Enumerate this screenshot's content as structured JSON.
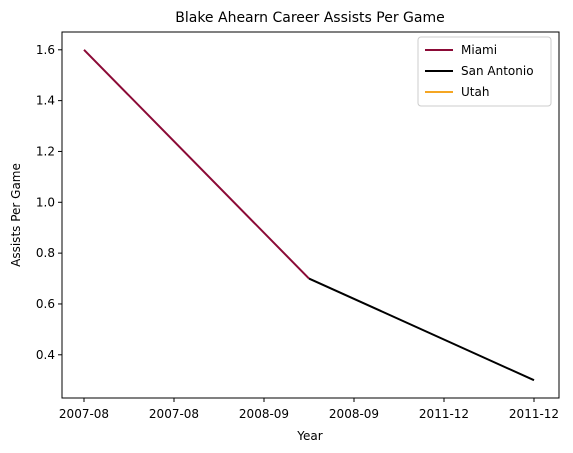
{
  "chart_data": {
    "type": "line",
    "title": "Blake Ahearn Career Assists Per Game",
    "xlabel": "Year",
    "ylabel": "Assists Per Game",
    "x_ticks": [
      "2007-08",
      "2007-08",
      "2008-09",
      "2008-09",
      "2011-12",
      "2011-12"
    ],
    "ylim": [
      0.23,
      1.67
    ],
    "y_ticks": [
      0.4,
      0.6,
      0.8,
      1.0,
      1.2,
      1.4,
      1.6
    ],
    "y_tick_labels": [
      "0.4",
      "0.6",
      "0.8",
      "1.0",
      "1.2",
      "1.4",
      "1.6"
    ],
    "grid": false,
    "legend_position": "top-right",
    "series": [
      {
        "name": "Miami",
        "color": "#8b0a36",
        "points": [
          [
            0,
            1.6
          ],
          [
            2.5,
            0.7
          ]
        ]
      },
      {
        "name": "San Antonio",
        "color": "#000000",
        "points": [
          [
            2.5,
            0.7
          ],
          [
            5,
            0.3
          ]
        ]
      },
      {
        "name": "Utah",
        "color": "#f5a623",
        "points": []
      }
    ]
  }
}
